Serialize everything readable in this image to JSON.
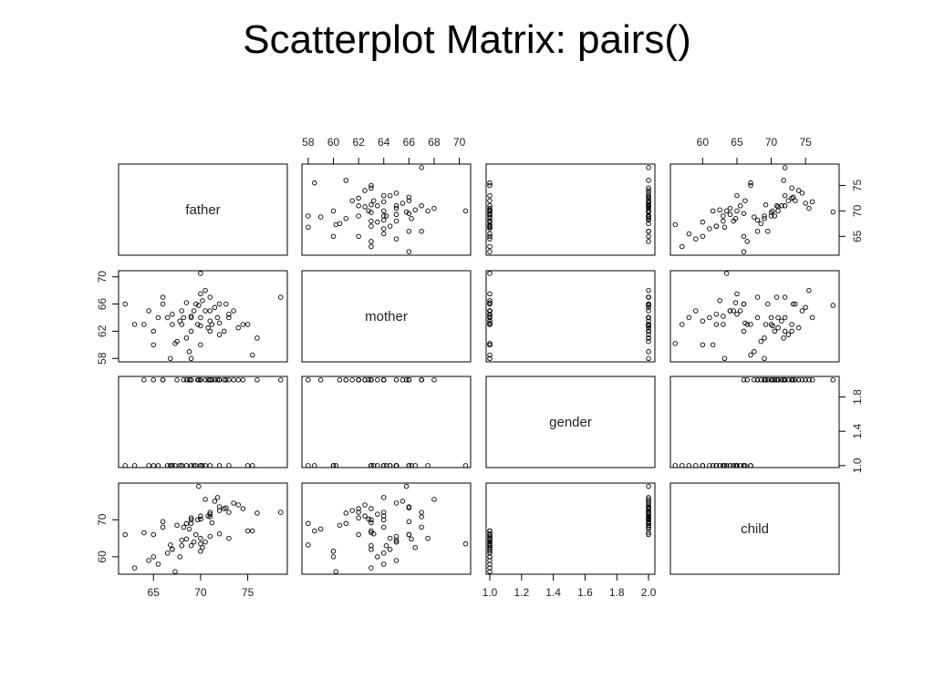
{
  "chart_data": {
    "type": "scatter-matrix",
    "title": "Scatterplot Matrix:  pairs()",
    "variables": [
      {
        "name": "father",
        "lim": [
          61.3,
          79.2
        ],
        "values": [
          69,
          70.5,
          71,
          72,
          68,
          65,
          66,
          73,
          74,
          69.5,
          70,
          67,
          68.5,
          71.5,
          75,
          62,
          64,
          78.5,
          70,
          69,
          66.5,
          72.5,
          68,
          71,
          67.5,
          70,
          73.5,
          65.5,
          69,
          70.2,
          68.8,
          71.8,
          63,
          72,
          69.3,
          74.5,
          67,
          70.8,
          66,
          75.5,
          69.7,
          71,
          68.2,
          70,
          72.7,
          65,
          67.8,
          70.5,
          69,
          76,
          64.5,
          71.2,
          68.5,
          70,
          73,
          66.8,
          69.8,
          72,
          71,
          67.3
        ]
      },
      {
        "name": "mother",
        "lim": [
          57.5,
          70.9
        ],
        "values": [
          64,
          65,
          62,
          66,
          63,
          60,
          67,
          64.5,
          62.5,
          66,
          64,
          63,
          61,
          65.5,
          63,
          66,
          63,
          67,
          70.5,
          58,
          64,
          62,
          65,
          63.5,
          60.5,
          67.5,
          65,
          64,
          62,
          66.5,
          59,
          64,
          63,
          61.5,
          65,
          63,
          64.5,
          62.5,
          66,
          58.5,
          63,
          65,
          64,
          60,
          66,
          62,
          63.5,
          68,
          64.2,
          61,
          65,
          63,
          66.2,
          62.8,
          64,
          58,
          65.8,
          63.2,
          67,
          60.2
        ]
      },
      {
        "name": "gender",
        "lim": [
          0.977,
          2.04
        ],
        "values": [
          2,
          1,
          2,
          2,
          1,
          1,
          2,
          1,
          2,
          1,
          2,
          1,
          2,
          2,
          1,
          1,
          2,
          2,
          1,
          2,
          1,
          2,
          1,
          2,
          2,
          1,
          2,
          1,
          2,
          1,
          2,
          2,
          1,
          2,
          1,
          2,
          1,
          2,
          2,
          1,
          2,
          1,
          2,
          1,
          2,
          2,
          1,
          2,
          1,
          2,
          1,
          2,
          1,
          2,
          2,
          1,
          2,
          1,
          2,
          1
        ]
      },
      {
        "name": "child",
        "lim": [
          55.3,
          79.9
        ],
        "values": [
          70,
          64,
          72,
          73.5,
          63,
          60,
          68,
          65,
          74,
          66,
          71,
          62,
          69,
          75,
          67,
          66,
          66.5,
          72,
          63.5,
          69,
          61,
          73,
          64.5,
          71.5,
          68.5,
          65,
          74.5,
          58,
          70.5,
          62.5,
          67.5,
          76,
          57,
          72.5,
          64,
          73,
          62,
          71,
          69.5,
          67,
          70,
          65.5,
          68,
          61.5,
          73.2,
          66,
          60,
          75.5,
          63,
          71.8,
          59,
          69.2,
          64.8,
          70.2,
          72,
          63.2,
          79,
          66.2,
          70.8,
          56
        ]
      }
    ],
    "axes": [
      {
        "variable": 0,
        "side": "bottom",
        "ticks": [
          65,
          70,
          75
        ]
      },
      {
        "variable": 1,
        "side": "top",
        "ticks": [
          58,
          60,
          62,
          64,
          66,
          68,
          70
        ]
      },
      {
        "variable": 2,
        "side": "bottom",
        "ticks": [
          {
            "value": 1,
            "label": "1.0"
          },
          {
            "value": 1.2,
            "label": "1.2"
          },
          {
            "value": 1.4,
            "label": "1.4"
          },
          {
            "value": 1.6,
            "label": "1.6"
          },
          {
            "value": 1.8,
            "label": "1.8"
          },
          {
            "value": 2,
            "label": "2.0"
          }
        ]
      },
      {
        "variable": 3,
        "side": "top",
        "ticks": [
          60,
          65,
          70,
          75
        ]
      },
      {
        "variable": 0,
        "side": "right",
        "ticks": [
          65,
          70,
          75
        ]
      },
      {
        "variable": 1,
        "side": "left",
        "ticks": [
          58,
          62,
          66,
          70
        ]
      },
      {
        "variable": 2,
        "side": "right",
        "ticks": [
          {
            "value": 1,
            "label": "1.0"
          },
          {
            "value": 1.4,
            "label": "1.4"
          },
          {
            "value": 1.8,
            "label": "1.8"
          }
        ]
      },
      {
        "variable": 3,
        "side": "left",
        "ticks": [
          60,
          70
        ]
      }
    ]
  }
}
